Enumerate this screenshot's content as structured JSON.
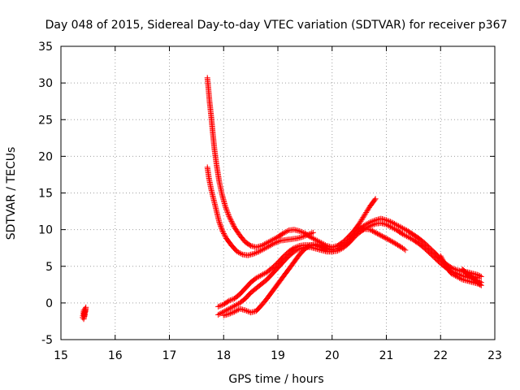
{
  "chart_data": {
    "type": "scatter",
    "title": "Day 048 of 2015, Sidereal Day-to-day VTEC variation (SDTVAR) for receiver p367",
    "xlabel": "GPS time / hours",
    "ylabel": "SDTVAR / TECUs",
    "xlim": [
      15,
      23
    ],
    "ylim": [
      -5,
      35
    ],
    "xticks": [
      15,
      16,
      17,
      18,
      19,
      20,
      21,
      22,
      23
    ],
    "yticks": [
      -5,
      0,
      5,
      10,
      15,
      20,
      25,
      30,
      35
    ],
    "grid": true,
    "marker": "+",
    "marker_color": "#ff0000",
    "series": [
      {
        "name": "isolated_segment",
        "points": [
          [
            15.4,
            -2.0
          ],
          [
            15.41,
            -1.5
          ],
          [
            15.42,
            -1.0
          ],
          [
            15.43,
            -1.8
          ],
          [
            15.44,
            -0.8
          ],
          [
            15.45,
            -1.2
          ],
          [
            15.46,
            -0.6
          ],
          [
            15.42,
            -2.2
          ],
          [
            15.44,
            -1.6
          ]
        ]
      },
      {
        "name": "decay_upper",
        "points": [
          [
            17.7,
            30.7
          ],
          [
            17.72,
            29.2
          ],
          [
            17.74,
            27.5
          ],
          [
            17.77,
            25.5
          ],
          [
            17.8,
            23.2
          ],
          [
            17.83,
            21.0
          ],
          [
            17.87,
            18.8
          ],
          [
            17.92,
            16.5
          ],
          [
            17.97,
            14.8
          ],
          [
            18.03,
            13.2
          ],
          [
            18.1,
            11.8
          ],
          [
            18.2,
            10.3
          ],
          [
            18.3,
            9.2
          ],
          [
            18.4,
            8.3
          ],
          [
            18.5,
            7.8
          ],
          [
            18.6,
            7.6
          ],
          [
            18.7,
            7.8
          ],
          [
            18.8,
            8.2
          ],
          [
            18.9,
            8.6
          ],
          [
            19.0,
            9.0
          ],
          [
            19.1,
            9.5
          ],
          [
            19.2,
            9.9
          ],
          [
            19.3,
            10.0
          ],
          [
            19.4,
            9.8
          ],
          [
            19.5,
            9.5
          ],
          [
            19.6,
            9.0
          ],
          [
            19.7,
            8.6
          ],
          [
            19.8,
            8.2
          ],
          [
            19.9,
            7.8
          ],
          [
            20.0,
            7.6
          ],
          [
            20.1,
            7.8
          ],
          [
            20.2,
            8.3
          ],
          [
            20.3,
            9.0
          ],
          [
            20.4,
            9.8
          ],
          [
            20.5,
            10.8
          ],
          [
            20.6,
            12.0
          ],
          [
            20.7,
            13.2
          ],
          [
            20.8,
            14.2
          ]
        ]
      },
      {
        "name": "decay_lower",
        "points": [
          [
            17.7,
            18.5
          ],
          [
            17.73,
            17.0
          ],
          [
            17.77,
            15.5
          ],
          [
            17.82,
            14.0
          ],
          [
            17.87,
            12.5
          ],
          [
            17.92,
            11.0
          ],
          [
            17.98,
            9.8
          ],
          [
            18.05,
            8.8
          ],
          [
            18.15,
            7.8
          ],
          [
            18.25,
            7.0
          ],
          [
            18.35,
            6.6
          ],
          [
            18.45,
            6.5
          ],
          [
            18.55,
            6.7
          ],
          [
            18.65,
            7.0
          ],
          [
            18.75,
            7.4
          ],
          [
            18.85,
            7.8
          ],
          [
            18.95,
            8.2
          ],
          [
            19.05,
            8.5
          ],
          [
            19.15,
            8.6
          ],
          [
            19.25,
            8.7
          ],
          [
            19.35,
            8.8
          ],
          [
            19.45,
            9.0
          ],
          [
            19.55,
            9.3
          ],
          [
            19.65,
            9.6
          ]
        ]
      },
      {
        "name": "rising_upper",
        "points": [
          [
            17.9,
            -0.5
          ],
          [
            18.0,
            -0.2
          ],
          [
            18.1,
            0.3
          ],
          [
            18.2,
            0.6
          ],
          [
            18.3,
            1.2
          ],
          [
            18.4,
            2.0
          ],
          [
            18.5,
            2.8
          ],
          [
            18.6,
            3.4
          ],
          [
            18.7,
            3.8
          ],
          [
            18.8,
            4.2
          ],
          [
            18.9,
            4.8
          ],
          [
            19.0,
            5.5
          ],
          [
            19.1,
            6.3
          ],
          [
            19.2,
            7.0
          ],
          [
            19.3,
            7.5
          ],
          [
            19.4,
            7.8
          ],
          [
            19.5,
            7.9
          ],
          [
            19.6,
            7.9
          ],
          [
            19.7,
            7.8
          ],
          [
            19.8,
            7.6
          ],
          [
            19.9,
            7.4
          ],
          [
            20.0,
            7.3
          ],
          [
            20.1,
            7.4
          ],
          [
            20.2,
            7.8
          ],
          [
            20.3,
            8.4
          ],
          [
            20.4,
            9.2
          ],
          [
            20.5,
            10.0
          ],
          [
            20.6,
            10.6
          ],
          [
            20.7,
            11.0
          ],
          [
            20.8,
            11.3
          ],
          [
            20.9,
            11.5
          ],
          [
            21.0,
            11.3
          ],
          [
            21.1,
            11.0
          ],
          [
            21.2,
            10.6
          ],
          [
            21.3,
            10.2
          ],
          [
            21.4,
            9.8
          ],
          [
            21.5,
            9.3
          ],
          [
            21.6,
            8.8
          ],
          [
            21.7,
            8.2
          ],
          [
            21.8,
            7.5
          ],
          [
            21.9,
            6.8
          ],
          [
            22.0,
            6.0
          ],
          [
            22.1,
            5.3
          ],
          [
            22.2,
            4.8
          ],
          [
            22.3,
            4.5
          ],
          [
            22.4,
            4.3
          ],
          [
            22.5,
            4.2
          ],
          [
            22.6,
            4.0
          ],
          [
            22.7,
            3.8
          ],
          [
            22.75,
            3.6
          ]
        ]
      },
      {
        "name": "rising_lower",
        "points": [
          [
            17.9,
            -1.6
          ],
          [
            18.0,
            -1.2
          ],
          [
            18.1,
            -0.8
          ],
          [
            18.2,
            -0.4
          ],
          [
            18.3,
            0.0
          ],
          [
            18.4,
            0.6
          ],
          [
            18.5,
            1.4
          ],
          [
            18.6,
            2.0
          ],
          [
            18.7,
            2.6
          ],
          [
            18.8,
            3.2
          ],
          [
            18.9,
            4.0
          ],
          [
            19.0,
            4.8
          ],
          [
            19.1,
            5.6
          ],
          [
            19.2,
            6.4
          ],
          [
            19.3,
            7.0
          ],
          [
            19.4,
            7.4
          ],
          [
            19.5,
            7.6
          ],
          [
            19.6,
            7.6
          ],
          [
            19.7,
            7.4
          ],
          [
            19.8,
            7.2
          ],
          [
            19.9,
            7.0
          ],
          [
            20.0,
            7.0
          ],
          [
            20.1,
            7.1
          ],
          [
            20.2,
            7.5
          ],
          [
            20.3,
            8.1
          ],
          [
            20.4,
            8.9
          ],
          [
            20.5,
            9.6
          ],
          [
            20.6,
            10.1
          ],
          [
            20.7,
            10.5
          ],
          [
            20.8,
            10.8
          ],
          [
            20.9,
            10.9
          ],
          [
            21.0,
            10.7
          ],
          [
            21.1,
            10.3
          ],
          [
            21.2,
            9.9
          ],
          [
            21.3,
            9.4
          ],
          [
            21.4,
            9.0
          ],
          [
            21.5,
            8.6
          ],
          [
            21.6,
            8.1
          ],
          [
            21.7,
            7.5
          ],
          [
            21.8,
            6.8
          ],
          [
            21.9,
            6.1
          ],
          [
            22.0,
            5.4
          ],
          [
            22.1,
            4.8
          ],
          [
            22.2,
            4.3
          ],
          [
            22.3,
            4.0
          ],
          [
            22.4,
            3.7
          ],
          [
            22.5,
            3.5
          ],
          [
            22.6,
            3.3
          ],
          [
            22.7,
            3.0
          ],
          [
            22.75,
            2.8
          ]
        ]
      },
      {
        "name": "rising_bottom",
        "points": [
          [
            18.0,
            -1.7
          ],
          [
            18.1,
            -1.5
          ],
          [
            18.2,
            -1.2
          ],
          [
            18.3,
            -0.8
          ],
          [
            18.4,
            -1.0
          ],
          [
            18.5,
            -1.3
          ],
          [
            18.6,
            -1.1
          ],
          [
            18.7,
            -0.3
          ],
          [
            18.8,
            0.6
          ],
          [
            18.9,
            1.6
          ],
          [
            19.0,
            2.6
          ],
          [
            19.1,
            3.6
          ],
          [
            19.2,
            4.6
          ],
          [
            19.3,
            5.6
          ],
          [
            19.4,
            6.6
          ],
          [
            19.5,
            7.4
          ],
          [
            19.6,
            7.9
          ],
          [
            19.7,
            8.0
          ],
          [
            20.0,
            7.2
          ],
          [
            20.5,
            10.2
          ],
          [
            20.7,
            10.0
          ],
          [
            20.9,
            9.2
          ],
          [
            21.1,
            8.4
          ],
          [
            21.3,
            7.5
          ],
          [
            21.35,
            7.2
          ]
        ]
      },
      {
        "name": "spread_tail",
        "points": [
          [
            22.0,
            6.4
          ],
          [
            22.1,
            5.0
          ],
          [
            22.2,
            4.0
          ],
          [
            22.3,
            3.6
          ],
          [
            22.4,
            3.2
          ],
          [
            22.5,
            3.0
          ],
          [
            22.6,
            2.8
          ],
          [
            22.7,
            2.6
          ],
          [
            22.75,
            2.4
          ],
          [
            22.4,
            4.6
          ],
          [
            22.5,
            3.8
          ],
          [
            22.6,
            3.6
          ],
          [
            22.7,
            3.4
          ]
        ]
      }
    ]
  }
}
